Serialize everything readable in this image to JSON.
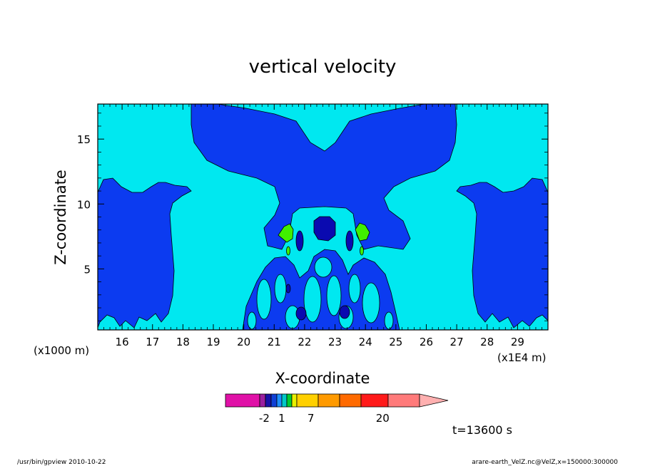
{
  "chart_data": {
    "type": "heatmap",
    "title": "vertical velocity",
    "xlabel": "X-coordinate",
    "ylabel": "Z-coordinate",
    "x_unit_left": "(x1000 m)",
    "x_unit_right": "(x1E4 m)",
    "xlim": [
      15.2,
      30.0
    ],
    "ylim": [
      0.3,
      17.7
    ],
    "x_ticks": [
      16,
      17,
      18,
      19,
      20,
      21,
      22,
      23,
      24,
      25,
      26,
      27,
      28,
      29
    ],
    "y_ticks": [
      5,
      10,
      15
    ],
    "time_label": "t=13600 s",
    "colorbar": {
      "tick_labels": [
        {
          "label": "-2",
          "pos": 0.2
        },
        {
          "label": "1",
          "pos": 0.29
        },
        {
          "label": "7",
          "pos": 0.44
        },
        {
          "label": "20",
          "pos": 0.81
        }
      ],
      "colors": [
        "#e011a7",
        "#9b1f9f",
        "#1a12a8",
        "#1040d6",
        "#1e90ff",
        "#00c8c8",
        "#00cc33",
        "#e8f000",
        "#ffd000",
        "#ff9a00",
        "#ff6a00",
        "#ff1a1a",
        "#ff7a7a",
        "#ffb0b0"
      ]
    },
    "background_color": "#00e8f0",
    "contour_colors": {
      "low": "#0c3bf0",
      "lower": "#0a0ab0",
      "high": "#40f000"
    }
  },
  "footer": {
    "left": "/usr/bin/gpview   2010-10-22",
    "right": "arare-earth_VelZ.nc@VelZ,x=150000:300000"
  }
}
